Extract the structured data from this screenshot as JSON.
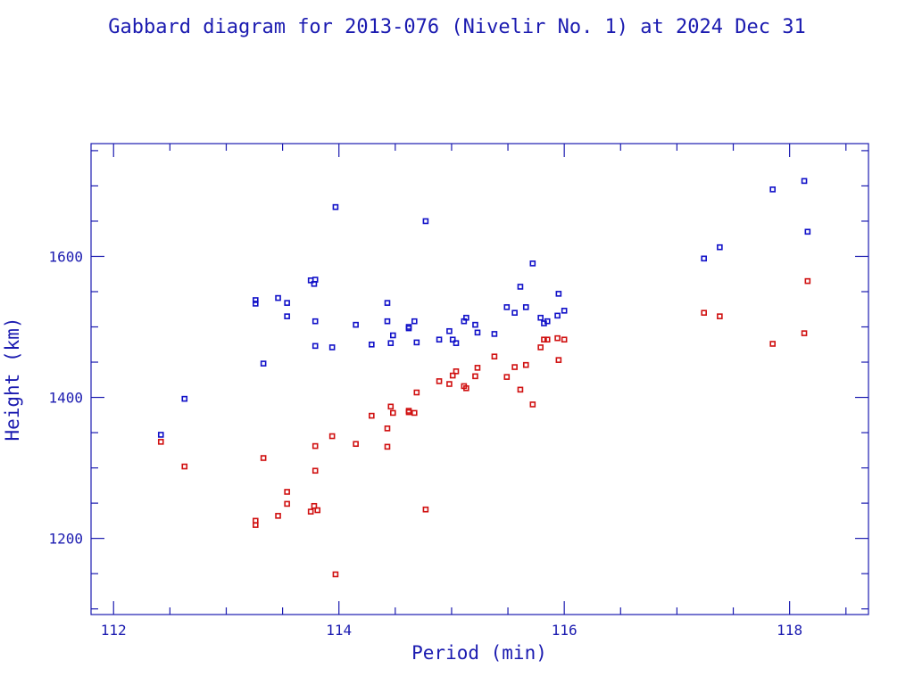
{
  "chart_data": {
    "type": "scatter",
    "title": "Gabbard diagram for 2013-076 (Nivelir No. 1) at 2024 Dec 31",
    "xlabel": "Period (min)",
    "ylabel": "Height (km)",
    "xlim": [
      111.8,
      118.7
    ],
    "ylim": [
      1092,
      1760
    ],
    "x_major_ticks": [
      112,
      114,
      116,
      118
    ],
    "x_tick_labels": [
      "112",
      "114",
      "116",
      "118"
    ],
    "y_major_ticks": [
      1200,
      1400,
      1600
    ],
    "y_tick_labels": [
      "1200",
      "1400",
      "1600"
    ],
    "x_minor_step": 0.5,
    "y_minor_step": 50,
    "grid": false,
    "legend": "none",
    "series": [
      {
        "color": "#1010c8",
        "points": [
          [
            112.42,
            1347
          ],
          [
            112.63,
            1398
          ],
          [
            113.26,
            1538
          ],
          [
            113.26,
            1533
          ],
          [
            113.33,
            1448
          ],
          [
            113.46,
            1541
          ],
          [
            113.54,
            1534
          ],
          [
            113.54,
            1515
          ],
          [
            113.75,
            1566
          ],
          [
            113.78,
            1561
          ],
          [
            113.79,
            1567
          ],
          [
            113.79,
            1508
          ],
          [
            113.79,
            1473
          ],
          [
            113.94,
            1471
          ],
          [
            113.97,
            1670
          ],
          [
            114.15,
            1503
          ],
          [
            114.29,
            1475
          ],
          [
            114.43,
            1534
          ],
          [
            114.43,
            1508
          ],
          [
            114.46,
            1477
          ],
          [
            114.48,
            1488
          ],
          [
            114.62,
            1500
          ],
          [
            114.62,
            1498
          ],
          [
            114.67,
            1508
          ],
          [
            114.69,
            1478
          ],
          [
            114.77,
            1650
          ],
          [
            114.89,
            1482
          ],
          [
            114.98,
            1494
          ],
          [
            115.01,
            1482
          ],
          [
            115.04,
            1477
          ],
          [
            115.11,
            1508
          ],
          [
            115.13,
            1513
          ],
          [
            115.21,
            1503
          ],
          [
            115.23,
            1492
          ],
          [
            115.38,
            1490
          ],
          [
            115.49,
            1528
          ],
          [
            115.56,
            1520
          ],
          [
            115.61,
            1557
          ],
          [
            115.66,
            1528
          ],
          [
            115.72,
            1590
          ],
          [
            115.79,
            1513
          ],
          [
            115.82,
            1505
          ],
          [
            115.85,
            1508
          ],
          [
            115.94,
            1516
          ],
          [
            115.95,
            1547
          ],
          [
            116.0,
            1523
          ],
          [
            117.24,
            1597
          ],
          [
            117.38,
            1613
          ],
          [
            117.85,
            1695
          ],
          [
            118.13,
            1707
          ],
          [
            118.16,
            1635
          ]
        ]
      },
      {
        "color": "#d01010",
        "points": [
          [
            112.42,
            1337
          ],
          [
            112.63,
            1302
          ],
          [
            113.26,
            1225
          ],
          [
            113.26,
            1219
          ],
          [
            113.33,
            1314
          ],
          [
            113.46,
            1232
          ],
          [
            113.54,
            1266
          ],
          [
            113.54,
            1249
          ],
          [
            113.75,
            1238
          ],
          [
            113.78,
            1246
          ],
          [
            113.79,
            1331
          ],
          [
            113.79,
            1296
          ],
          [
            113.81,
            1240
          ],
          [
            113.94,
            1345
          ],
          [
            113.97,
            1149
          ],
          [
            114.15,
            1334
          ],
          [
            114.29,
            1374
          ],
          [
            114.43,
            1330
          ],
          [
            114.43,
            1356
          ],
          [
            114.46,
            1387
          ],
          [
            114.48,
            1378
          ],
          [
            114.62,
            1381
          ],
          [
            114.62,
            1379
          ],
          [
            114.67,
            1378
          ],
          [
            114.69,
            1407
          ],
          [
            114.77,
            1241
          ],
          [
            114.89,
            1423
          ],
          [
            114.98,
            1419
          ],
          [
            115.01,
            1431
          ],
          [
            115.04,
            1437
          ],
          [
            115.11,
            1416
          ],
          [
            115.13,
            1413
          ],
          [
            115.21,
            1430
          ],
          [
            115.23,
            1442
          ],
          [
            115.38,
            1458
          ],
          [
            115.49,
            1429
          ],
          [
            115.56,
            1443
          ],
          [
            115.61,
            1411
          ],
          [
            115.66,
            1446
          ],
          [
            115.72,
            1390
          ],
          [
            115.79,
            1471
          ],
          [
            115.82,
            1482
          ],
          [
            115.85,
            1482
          ],
          [
            115.94,
            1484
          ],
          [
            115.95,
            1453
          ],
          [
            116.0,
            1482
          ],
          [
            117.24,
            1520
          ],
          [
            117.38,
            1515
          ],
          [
            117.85,
            1476
          ],
          [
            118.13,
            1491
          ],
          [
            118.16,
            1565
          ]
        ]
      }
    ]
  }
}
